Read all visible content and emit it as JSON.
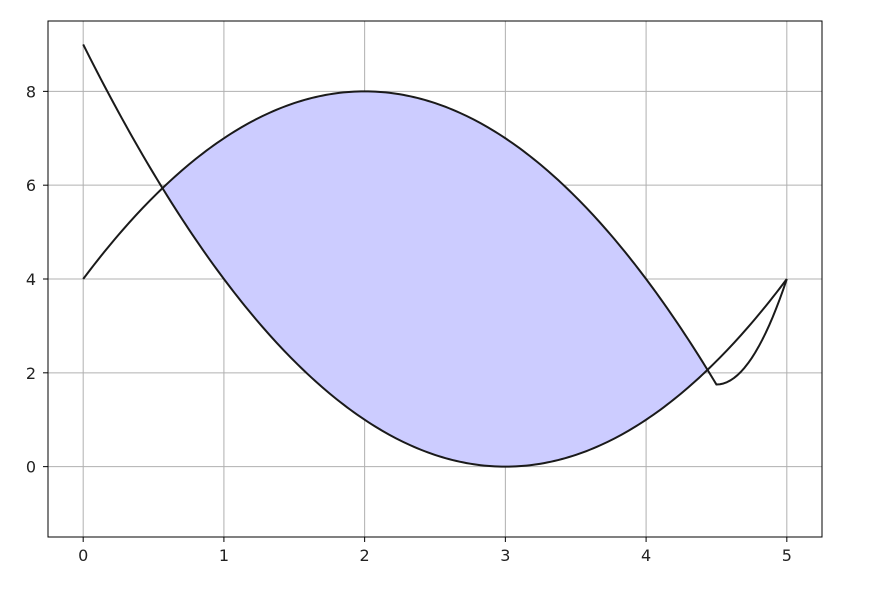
{
  "chart_data": {
    "type": "area",
    "title": "",
    "xlabel": "",
    "ylabel": "",
    "xlim": [
      -0.25,
      5.25
    ],
    "ylim": [
      -1.5,
      9.5
    ],
    "x_ticks": [
      0,
      1,
      2,
      3,
      4,
      5
    ],
    "y_ticks": [
      0,
      2,
      4,
      6,
      8
    ],
    "grid": true,
    "legend": "none",
    "series": [
      {
        "x": [
          0,
          0.5,
          1,
          1.5,
          2,
          2.5,
          3,
          3.5,
          4,
          4.5,
          5
        ],
        "values": [
          4,
          5.75,
          7,
          7.75,
          8,
          7.75,
          7,
          5.75,
          4,
          1.75,
          4
        ]
      },
      {
        "x": [
          0,
          0.5,
          1,
          1.5,
          2,
          2.5,
          3,
          3.5,
          4,
          4.5,
          5
        ],
        "values": [
          9,
          6.25,
          4,
          2.25,
          1,
          0.25,
          0,
          0.25,
          1,
          2.25,
          4
        ]
      }
    ],
    "fill_between": {
      "x_range": [
        0.5635,
        4.4365
      ],
      "color": "#ccccff"
    },
    "curve_color": "#1a1a1a"
  }
}
